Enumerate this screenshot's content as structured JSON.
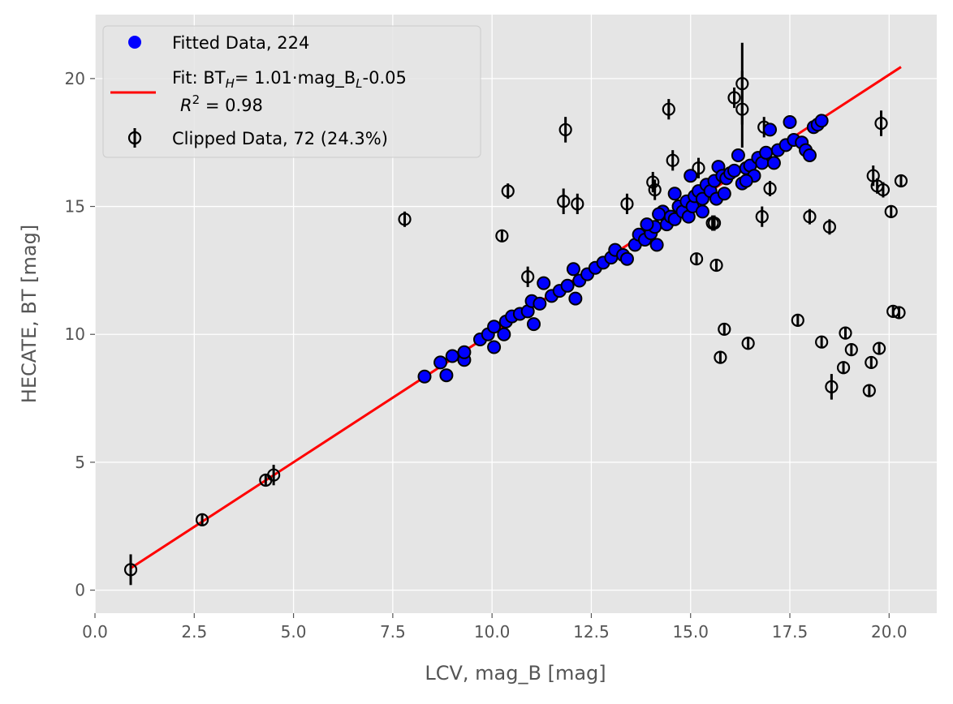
{
  "chart_data": {
    "type": "scatter",
    "xlabel": "LCV, mag_B [mag]",
    "ylabel": "HECATE, BT [mag]",
    "xlim": [
      0.0,
      21.2
    ],
    "ylim": [
      -0.9,
      22.5
    ],
    "x_ticks": [
      "0.0",
      "2.5",
      "5.0",
      "7.5",
      "10.0",
      "12.5",
      "15.0",
      "17.5",
      "20.0"
    ],
    "x_tick_values": [
      0,
      2.5,
      5,
      7.5,
      10,
      12.5,
      15,
      17.5,
      20
    ],
    "y_ticks": [
      "0",
      "5",
      "10",
      "15",
      "20"
    ],
    "y_tick_values": [
      0,
      5,
      10,
      15,
      20
    ],
    "grid": true,
    "legend_position": "top-left",
    "legend": {
      "fitted_label": "Fitted Data, 224",
      "fit_label_prefix": "Fit: BT",
      "fit_sub_h": "H",
      "fit_label_mid": "= 1.01·mag_B",
      "fit_sub_l": "L",
      "fit_label_suffix": "-0.05",
      "r2_label_r": "R",
      "r2_label_sup": "2",
      "r2_label_value": " =  0.98",
      "clipped_label": "Clipped Data, 72 (24.3%)"
    },
    "colors": {
      "fitted": "#0000ff",
      "fit_line": "#ff0000",
      "clipped_marker": "#000000",
      "background": "#e5e5e5",
      "grid": "#ffffff"
    },
    "fit": {
      "slope": 1.01,
      "intercept": -0.05,
      "r2": 0.98,
      "x_range": [
        0.9,
        20.3
      ]
    },
    "fitted_points": [
      [
        8.3,
        8.35
      ],
      [
        8.7,
        8.9
      ],
      [
        8.85,
        8.4
      ],
      [
        9.0,
        9.15
      ],
      [
        9.3,
        9.0
      ],
      [
        9.3,
        9.3
      ],
      [
        9.7,
        9.8
      ],
      [
        9.9,
        10.0
      ],
      [
        10.05,
        10.3
      ],
      [
        10.05,
        9.5
      ],
      [
        10.3,
        10.0
      ],
      [
        10.35,
        10.5
      ],
      [
        10.5,
        10.7
      ],
      [
        10.7,
        10.8
      ],
      [
        10.9,
        10.9
      ],
      [
        11.0,
        11.3
      ],
      [
        11.05,
        10.4
      ],
      [
        11.2,
        11.2
      ],
      [
        11.3,
        12.0
      ],
      [
        11.5,
        11.5
      ],
      [
        11.7,
        11.7
      ],
      [
        11.9,
        11.9
      ],
      [
        12.05,
        12.55
      ],
      [
        12.1,
        11.4
      ],
      [
        12.2,
        12.1
      ],
      [
        12.4,
        12.35
      ],
      [
        12.6,
        12.6
      ],
      [
        12.8,
        12.8
      ],
      [
        13.0,
        13.0
      ],
      [
        13.1,
        13.3
      ],
      [
        13.3,
        13.1
      ],
      [
        13.4,
        12.95
      ],
      [
        13.6,
        13.5
      ],
      [
        13.7,
        13.9
      ],
      [
        13.85,
        13.7
      ],
      [
        14.0,
        13.95
      ],
      [
        14.1,
        14.2
      ],
      [
        14.15,
        13.5
      ],
      [
        14.3,
        14.8
      ],
      [
        14.4,
        14.3
      ],
      [
        14.5,
        14.6
      ],
      [
        14.6,
        14.5
      ],
      [
        14.7,
        15.0
      ],
      [
        14.8,
        14.8
      ],
      [
        14.9,
        15.2
      ],
      [
        14.95,
        14.6
      ],
      [
        15.05,
        15.0
      ],
      [
        15.1,
        15.4
      ],
      [
        15.2,
        15.6
      ],
      [
        15.3,
        15.3
      ],
      [
        15.4,
        15.85
      ],
      [
        15.5,
        15.6
      ],
      [
        15.6,
        16.0
      ],
      [
        15.65,
        15.3
      ],
      [
        15.7,
        16.55
      ],
      [
        15.8,
        16.2
      ],
      [
        15.9,
        16.1
      ],
      [
        16.0,
        16.3
      ],
      [
        16.1,
        16.4
      ],
      [
        16.2,
        17.0
      ],
      [
        16.3,
        15.9
      ],
      [
        16.4,
        16.5
      ],
      [
        16.5,
        16.6
      ],
      [
        16.6,
        16.2
      ],
      [
        16.7,
        16.9
      ],
      [
        16.8,
        16.7
      ],
      [
        16.9,
        17.1
      ],
      [
        17.0,
        18.0
      ],
      [
        17.1,
        16.7
      ],
      [
        17.2,
        17.2
      ],
      [
        17.4,
        17.4
      ],
      [
        17.5,
        18.3
      ],
      [
        17.6,
        17.6
      ],
      [
        17.8,
        17.5
      ],
      [
        17.9,
        17.2
      ],
      [
        18.0,
        17.0
      ],
      [
        18.1,
        18.1
      ],
      [
        18.2,
        18.2
      ],
      [
        18.3,
        18.35
      ],
      [
        15.0,
        16.2
      ],
      [
        14.6,
        15.5
      ],
      [
        14.2,
        14.7
      ],
      [
        13.9,
        14.3
      ],
      [
        15.3,
        14.8
      ],
      [
        16.4,
        16.0
      ],
      [
        15.85,
        15.5
      ]
    ],
    "clipped_points": [
      [
        0.9,
        0.8,
        0.6
      ],
      [
        2.7,
        2.75,
        0.2
      ],
      [
        4.3,
        4.3,
        0.2
      ],
      [
        4.5,
        4.5,
        0.4
      ],
      [
        7.8,
        14.5,
        0.3
      ],
      [
        10.25,
        13.85,
        0.2
      ],
      [
        10.4,
        15.6,
        0.3
      ],
      [
        10.9,
        12.25,
        0.4
      ],
      [
        11.8,
        15.2,
        0.5
      ],
      [
        11.85,
        18.0,
        0.5
      ],
      [
        12.15,
        15.1,
        0.4
      ],
      [
        13.4,
        15.1,
        0.4
      ],
      [
        14.05,
        15.95,
        0.4
      ],
      [
        14.1,
        15.65,
        0.4
      ],
      [
        14.45,
        18.8,
        0.4
      ],
      [
        14.55,
        16.8,
        0.4
      ],
      [
        15.2,
        16.5,
        0.4
      ],
      [
        15.15,
        12.95,
        0.2
      ],
      [
        15.55,
        14.35,
        0.3
      ],
      [
        15.6,
        14.35,
        0.3
      ],
      [
        15.65,
        12.7,
        0.2
      ],
      [
        15.75,
        9.1,
        0.2
      ],
      [
        15.85,
        10.2,
        0.2
      ],
      [
        16.1,
        19.25,
        0.4
      ],
      [
        16.3,
        19.8,
        1.6
      ],
      [
        16.3,
        18.8,
        1.5
      ],
      [
        16.45,
        9.65,
        0.2
      ],
      [
        16.8,
        14.6,
        0.4
      ],
      [
        16.85,
        18.1,
        0.4
      ],
      [
        17.0,
        15.7,
        0.3
      ],
      [
        17.7,
        10.55,
        0.2
      ],
      [
        18.0,
        14.6,
        0.3
      ],
      [
        18.3,
        9.7,
        0.2
      ],
      [
        18.5,
        14.2,
        0.3
      ],
      [
        18.55,
        7.95,
        0.5
      ],
      [
        18.85,
        8.7,
        0.2
      ],
      [
        18.9,
        10.05,
        0.2
      ],
      [
        19.05,
        9.4,
        0.2
      ],
      [
        19.5,
        7.8,
        0.2
      ],
      [
        19.55,
        8.9,
        0.2
      ],
      [
        19.6,
        16.2,
        0.4
      ],
      [
        19.7,
        15.8,
        0.3
      ],
      [
        19.75,
        9.45,
        0.2
      ],
      [
        19.85,
        15.65,
        0.3
      ],
      [
        19.8,
        18.25,
        0.5
      ],
      [
        20.05,
        14.8,
        0.2
      ],
      [
        20.1,
        10.9,
        0.2
      ],
      [
        20.25,
        10.85,
        0.2
      ],
      [
        20.3,
        16.0,
        0.2
      ]
    ]
  }
}
